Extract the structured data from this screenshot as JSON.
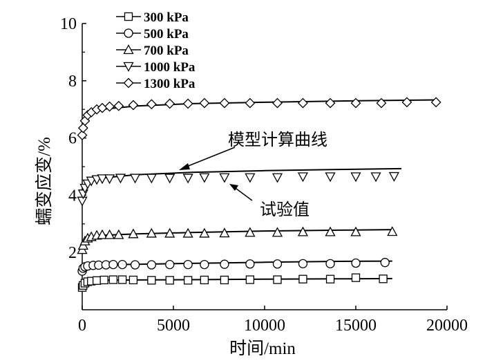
{
  "chart_data": {
    "type": "scatter",
    "xlabel": "时间/min",
    "ylabel": "蠕变应变/%",
    "xlim": [
      0,
      20000
    ],
    "ylim": [
      0,
      10
    ],
    "x_ticks": [
      0,
      5000,
      10000,
      15000,
      20000
    ],
    "x_tick_labels": [
      "0",
      "5000",
      "10000",
      "15000",
      "20000"
    ],
    "y_ticks": [
      2,
      4,
      6,
      8,
      10
    ],
    "y_tick_labels": [
      "2",
      "4",
      "6",
      "8",
      "10"
    ],
    "grid": false,
    "legend_position": "top-left",
    "annotations": {
      "model_curve": "模型计算曲线",
      "test_values": "试验值"
    },
    "series": [
      {
        "name": "300 kPa",
        "marker": "square",
        "points": [
          [
            0,
            0.78
          ],
          [
            50,
            0.85
          ],
          [
            150,
            0.93
          ],
          [
            300,
            0.98
          ],
          [
            500,
            1.0
          ],
          [
            800,
            1.02
          ],
          [
            1200,
            1.04
          ],
          [
            1700,
            1.05
          ],
          [
            2200,
            1.05
          ],
          [
            2800,
            1.04
          ],
          [
            3800,
            1.03
          ],
          [
            4800,
            1.03
          ],
          [
            5800,
            1.03
          ],
          [
            6700,
            1.04
          ],
          [
            7800,
            1.04
          ],
          [
            9200,
            1.05
          ],
          [
            10700,
            1.05
          ],
          [
            12100,
            1.07
          ],
          [
            13600,
            1.07
          ],
          [
            15000,
            1.12
          ],
          [
            16500,
            1.08
          ]
        ],
        "curve": [
          [
            0,
            0.78
          ],
          [
            300,
            0.98
          ],
          [
            1000,
            1.03
          ],
          [
            3000,
            1.04
          ],
          [
            6000,
            1.05
          ],
          [
            10000,
            1.07
          ],
          [
            14000,
            1.08
          ],
          [
            17000,
            1.09
          ]
        ]
      },
      {
        "name": "500 kPa",
        "marker": "circle",
        "points": [
          [
            0,
            1.35
          ],
          [
            50,
            1.45
          ],
          [
            150,
            1.5
          ],
          [
            300,
            1.53
          ],
          [
            600,
            1.55
          ],
          [
            900,
            1.56
          ],
          [
            1300,
            1.57
          ],
          [
            1700,
            1.58
          ],
          [
            2200,
            1.58
          ],
          [
            2900,
            1.57
          ],
          [
            3800,
            1.57
          ],
          [
            4800,
            1.58
          ],
          [
            5800,
            1.58
          ],
          [
            6700,
            1.58
          ],
          [
            7800,
            1.59
          ],
          [
            9200,
            1.6
          ],
          [
            10700,
            1.6
          ],
          [
            12100,
            1.61
          ],
          [
            13600,
            1.61
          ],
          [
            15000,
            1.63
          ],
          [
            16600,
            1.65
          ]
        ],
        "curve": [
          [
            0,
            1.35
          ],
          [
            300,
            1.53
          ],
          [
            1000,
            1.57
          ],
          [
            3000,
            1.59
          ],
          [
            6000,
            1.62
          ],
          [
            10000,
            1.66
          ],
          [
            14000,
            1.69
          ],
          [
            17000,
            1.7
          ]
        ]
      },
      {
        "name": "700 kPa",
        "marker": "triangle-up",
        "points": [
          [
            0,
            2.1
          ],
          [
            50,
            2.25
          ],
          [
            150,
            2.4
          ],
          [
            300,
            2.5
          ],
          [
            500,
            2.55
          ],
          [
            800,
            2.6
          ],
          [
            1100,
            2.62
          ],
          [
            1500,
            2.62
          ],
          [
            2000,
            2.62
          ],
          [
            2800,
            2.65
          ],
          [
            3800,
            2.67
          ],
          [
            4800,
            2.67
          ],
          [
            5800,
            2.67
          ],
          [
            6700,
            2.67
          ],
          [
            7800,
            2.68
          ],
          [
            9200,
            2.7
          ],
          [
            10700,
            2.7
          ],
          [
            12100,
            2.72
          ],
          [
            13600,
            2.72
          ],
          [
            15000,
            2.72
          ],
          [
            17000,
            2.73
          ]
        ],
        "curve": [
          [
            0,
            2.1
          ],
          [
            300,
            2.5
          ],
          [
            1000,
            2.6
          ],
          [
            3000,
            2.65
          ],
          [
            6000,
            2.7
          ],
          [
            10000,
            2.75
          ],
          [
            14000,
            2.78
          ],
          [
            17000,
            2.8
          ]
        ]
      },
      {
        "name": "1000 kPa",
        "marker": "triangle-down",
        "points": [
          [
            0,
            3.8
          ],
          [
            50,
            4.05
          ],
          [
            150,
            4.25
          ],
          [
            300,
            4.4
          ],
          [
            500,
            4.5
          ],
          [
            800,
            4.55
          ],
          [
            1100,
            4.58
          ],
          [
            1500,
            4.58
          ],
          [
            2100,
            4.6
          ],
          [
            2900,
            4.6
          ],
          [
            3800,
            4.6
          ],
          [
            4800,
            4.6
          ],
          [
            5800,
            4.6
          ],
          [
            6700,
            4.62
          ],
          [
            7800,
            4.62
          ],
          [
            9200,
            4.62
          ],
          [
            10700,
            4.62
          ],
          [
            12100,
            4.65
          ],
          [
            13600,
            4.65
          ],
          [
            15000,
            4.65
          ],
          [
            16100,
            4.65
          ],
          [
            17100,
            4.66
          ]
        ],
        "curve": [
          [
            0,
            3.8
          ],
          [
            300,
            4.45
          ],
          [
            1000,
            4.6
          ],
          [
            3000,
            4.72
          ],
          [
            6000,
            4.8
          ],
          [
            10000,
            4.86
          ],
          [
            14000,
            4.9
          ],
          [
            17500,
            4.93
          ]
        ]
      },
      {
        "name": "1300 kPa",
        "marker": "diamond",
        "points": [
          [
            0,
            6.1
          ],
          [
            50,
            6.35
          ],
          [
            150,
            6.6
          ],
          [
            300,
            6.8
          ],
          [
            500,
            6.9
          ],
          [
            800,
            7.0
          ],
          [
            1100,
            7.05
          ],
          [
            1500,
            7.1
          ],
          [
            2000,
            7.12
          ],
          [
            2800,
            7.15
          ],
          [
            3800,
            7.18
          ],
          [
            4800,
            7.2
          ],
          [
            5800,
            7.2
          ],
          [
            6700,
            7.22
          ],
          [
            7800,
            7.22
          ],
          [
            9200,
            7.22
          ],
          [
            10700,
            7.22
          ],
          [
            12100,
            7.22
          ],
          [
            13600,
            7.22
          ],
          [
            15000,
            7.22
          ],
          [
            16400,
            7.22
          ],
          [
            17800,
            7.25
          ],
          [
            19400,
            7.25
          ]
        ],
        "curve": [
          [
            0,
            6.1
          ],
          [
            300,
            6.85
          ],
          [
            1000,
            7.0
          ],
          [
            3000,
            7.12
          ],
          [
            6000,
            7.2
          ],
          [
            10000,
            7.25
          ],
          [
            15000,
            7.3
          ],
          [
            19400,
            7.33
          ]
        ]
      }
    ]
  }
}
